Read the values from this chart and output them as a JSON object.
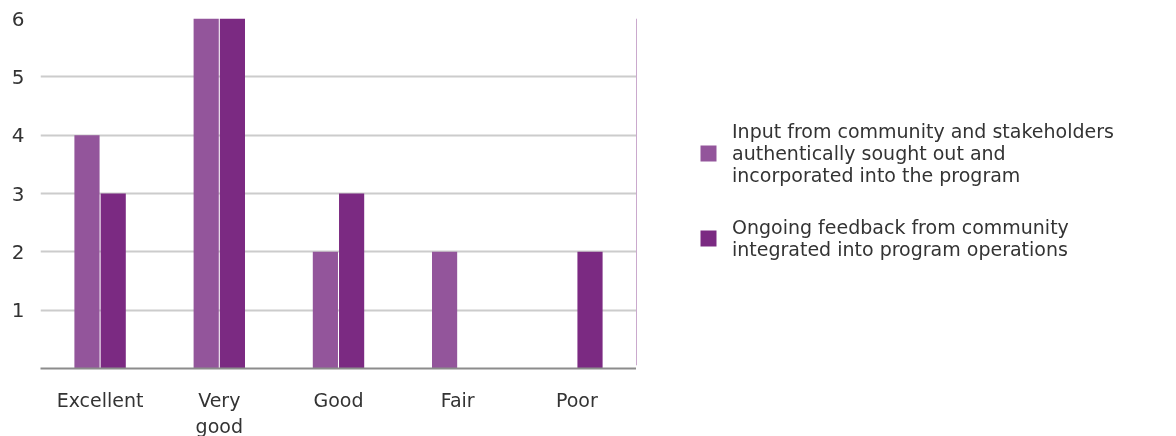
{
  "chart_data": {
    "type": "bar",
    "categories": [
      "Excellent",
      "Very good",
      "Good",
      "Fair",
      "Poor"
    ],
    "series": [
      {
        "name": "Input from community and stakeholders authentically sought out and incorporated into the program",
        "color": "#93559b",
        "values": [
          4,
          6,
          2,
          2,
          0
        ]
      },
      {
        "name": "Ongoing feedback from community integrated into program operations",
        "color": "#7b2a82",
        "values": [
          3,
          6,
          3,
          0,
          2
        ]
      }
    ],
    "ylim": [
      0,
      6
    ],
    "yticks": [
      1,
      2,
      3,
      4,
      5,
      6
    ],
    "grid": "y",
    "legend": "right"
  }
}
